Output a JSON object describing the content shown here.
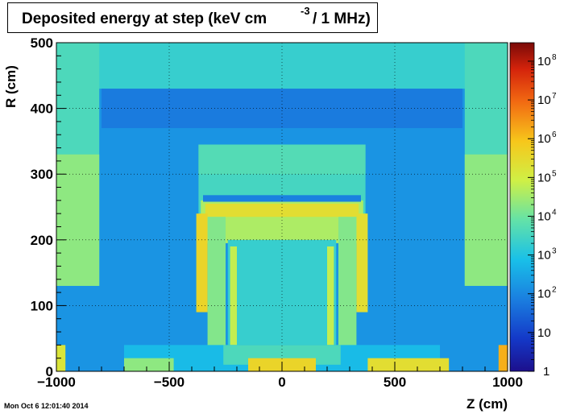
{
  "chart_data": {
    "type": "heatmap",
    "title": "Deposited energy at step (keV cm",
    "title_exponent": "-3",
    "title_tail": "/ 1 MHz)",
    "xlabel": "Z (cm)",
    "ylabel": "R (cm)",
    "xlim": [
      -1000,
      1000
    ],
    "ylim": [
      0,
      500
    ],
    "x_ticks": [
      -1000,
      -500,
      0,
      500,
      1000
    ],
    "x_tick_labels": [
      "−1000",
      "−500",
      "0",
      "500",
      "1000"
    ],
    "y_ticks": [
      0,
      100,
      200,
      300,
      400,
      500
    ],
    "y_tick_labels": [
      "0",
      "100",
      "200",
      "300",
      "400",
      "500"
    ],
    "grid": true,
    "colorbar": {
      "scale": "log",
      "range": [
        1,
        300000000
      ],
      "ticks": [
        {
          "base": "1",
          "exp": ""
        },
        {
          "base": "10",
          "exp": ""
        },
        {
          "base": "10",
          "exp": "2"
        },
        {
          "base": "10",
          "exp": "3"
        },
        {
          "base": "10",
          "exp": "4"
        },
        {
          "base": "10",
          "exp": "5"
        },
        {
          "base": "10",
          "exp": "6"
        },
        {
          "base": "10",
          "exp": "7"
        },
        {
          "base": "10",
          "exp": "8"
        }
      ]
    },
    "regions": [
      {
        "z": [
          -1000,
          1000
        ],
        "r": [
          0,
          500
        ],
        "level": 2.2
      },
      {
        "z": [
          -1000,
          1000
        ],
        "r": [
          430,
          500
        ],
        "level": 3.3
      },
      {
        "z": [
          -800,
          800
        ],
        "r": [
          370,
          430
        ],
        "level": 1.8
      },
      {
        "z": [
          -1000,
          -810
        ],
        "r": [
          130,
          500
        ],
        "level": 3.6
      },
      {
        "z": [
          810,
          1000
        ],
        "r": [
          130,
          500
        ],
        "level": 3.6
      },
      {
        "z": [
          -1000,
          -810
        ],
        "r": [
          130,
          330
        ],
        "level": 4.3
      },
      {
        "z": [
          810,
          1000
        ],
        "r": [
          130,
          330
        ],
        "level": 4.3
      },
      {
        "z": [
          -370,
          370
        ],
        "r": [
          220,
          345
        ],
        "level": 3.5
      },
      {
        "z": [
          -370,
          370
        ],
        "r": [
          300,
          345
        ],
        "level": 3.7
      },
      {
        "z": [
          -360,
          360
        ],
        "r": [
          195,
          260
        ],
        "level": 4.6
      },
      {
        "z": [
          -350,
          350
        ],
        "r": [
          258,
          268
        ],
        "level": 1.9
      },
      {
        "z": [
          -340,
          340
        ],
        "r": [
          235,
          255
        ],
        "level": 5.4
      },
      {
        "z": [
          -240,
          240
        ],
        "r": [
          40,
          200
        ],
        "level": 3.3
      },
      {
        "z": [
          -380,
          -330
        ],
        "r": [
          90,
          240
        ],
        "level": 5.6
      },
      {
        "z": [
          330,
          380
        ],
        "r": [
          90,
          240
        ],
        "level": 5.4
      },
      {
        "z": [
          -330,
          -250
        ],
        "r": [
          30,
          235
        ],
        "level": 4.2
      },
      {
        "z": [
          250,
          330
        ],
        "r": [
          30,
          235
        ],
        "level": 4.2
      },
      {
        "z": [
          -230,
          -200
        ],
        "r": [
          40,
          190
        ],
        "level": 4.8
      },
      {
        "z": [
          200,
          230
        ],
        "r": [
          40,
          190
        ],
        "level": 4.8
      },
      {
        "z": [
          -700,
          700
        ],
        "r": [
          0,
          40
        ],
        "level": 2.8
      },
      {
        "z": [
          -260,
          260
        ],
        "r": [
          10,
          40
        ],
        "level": 3.6
      },
      {
        "z": [
          -150,
          150
        ],
        "r": [
          0,
          20
        ],
        "level": 5.6
      },
      {
        "z": [
          380,
          740
        ],
        "r": [
          0,
          20
        ],
        "level": 5.4
      },
      {
        "z": [
          -700,
          -480
        ],
        "r": [
          0,
          20
        ],
        "level": 4.3
      },
      {
        "z": [
          -1000,
          -960
        ],
        "r": [
          0,
          40
        ],
        "level": 5.2
      },
      {
        "z": [
          960,
          1000
        ],
        "r": [
          0,
          40
        ],
        "level": 6.2
      }
    ]
  }
}
